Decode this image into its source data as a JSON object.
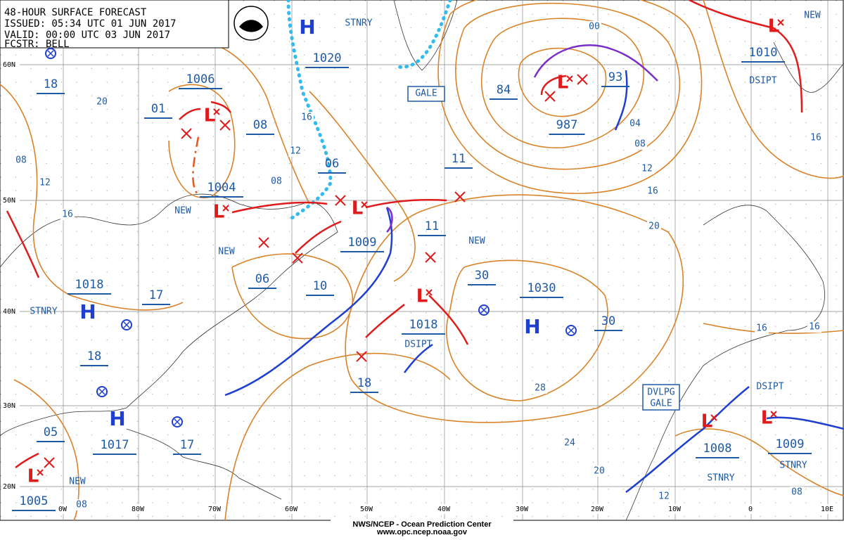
{
  "header": {
    "lines": [
      "48-HOUR SURFACE FORECAST",
      "ISSUED: 05:34 UTC 01 JUN 2017",
      "VALID:  00:00 UTC 03 JUN 2017",
      "FCSTR: BELL"
    ]
  },
  "footer": {
    "agency": "NWS/NCEP - Ocean Prediction Center",
    "url": "www.opc.ncep.noaa.gov"
  },
  "latitude_labels": [
    "60N",
    "50N",
    "40N",
    "30N",
    "20N"
  ],
  "longitude_labels": [
    "0W",
    "80W",
    "70W",
    "60W",
    "50W",
    "40W",
    "30W",
    "20W",
    "10W",
    "0",
    "10E"
  ],
  "pressure_labels": [
    "1006",
    "01",
    "08",
    "1004",
    "06",
    "1009",
    "11",
    "11",
    "1020",
    "84",
    "987",
    "93",
    "1010",
    "18",
    "1018",
    "17",
    "18",
    "06",
    "10",
    "30",
    "1030",
    "1018",
    "30",
    "18",
    "05",
    "1017",
    "17",
    "1005",
    "1008",
    "1009"
  ],
  "isobar_labels": [
    "20",
    "08",
    "12",
    "16",
    "16",
    "12",
    "08",
    "00",
    "04",
    "08",
    "12",
    "16",
    "20",
    "16",
    "28",
    "24",
    "20",
    "12",
    "08",
    "16",
    "16",
    "08"
  ],
  "boxed_labels": [
    "GALE",
    "DVLPG",
    "GALE"
  ],
  "annotations": [
    "STNRY",
    "NEW",
    "DSIPT",
    "NEW",
    "NEW",
    "NEW",
    "STNRY",
    "DSIPT",
    "DSIPT",
    "STNRY",
    "STNRY",
    "NEW"
  ],
  "highs": [
    "H",
    "H",
    "H",
    "H"
  ],
  "lows": [
    "L",
    "L",
    "L",
    "L",
    "L",
    "L",
    "L",
    "L",
    "L"
  ]
}
